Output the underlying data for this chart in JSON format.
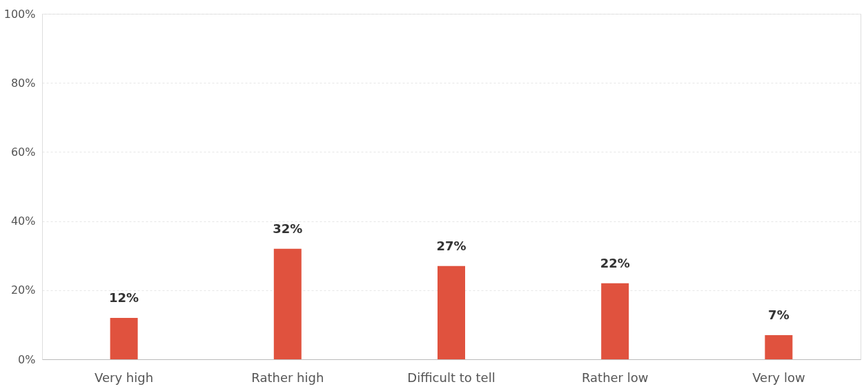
{
  "chart_data": {
    "type": "bar",
    "categories": [
      "Very high",
      "Rather high",
      "Difficult to tell",
      "Rather low",
      "Very low"
    ],
    "values": [
      12,
      32,
      27,
      22,
      7
    ],
    "value_labels": [
      "12%",
      "32%",
      "27%",
      "22%",
      "7%"
    ],
    "color": "#e0523e",
    "ylim": [
      0,
      100
    ],
    "yticks": [
      {
        "value": 0,
        "label": "0%"
      },
      {
        "value": 20,
        "label": "20%"
      },
      {
        "value": 40,
        "label": "40%"
      },
      {
        "value": 60,
        "label": "60%"
      },
      {
        "value": 80,
        "label": "80%"
      },
      {
        "value": 100,
        "label": "100%"
      }
    ],
    "grid": "y"
  }
}
